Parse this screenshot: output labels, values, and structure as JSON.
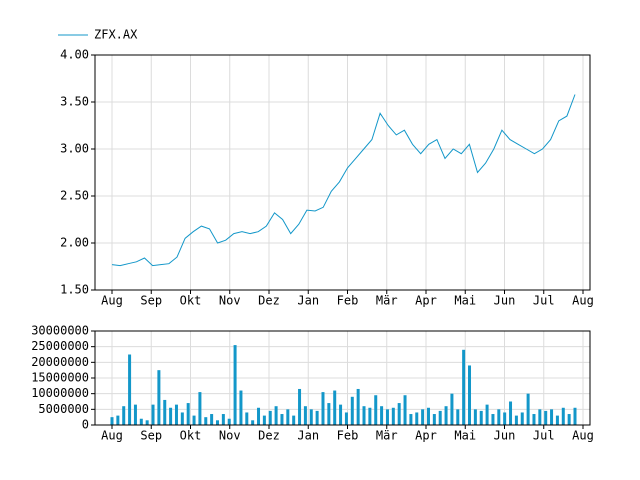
{
  "chart_data": [
    {
      "type": "line",
      "series": [
        {
          "name": "ZFX.AX",
          "color": "#1397c9",
          "values": [
            1.77,
            1.76,
            1.78,
            1.8,
            1.84,
            1.76,
            1.77,
            1.78,
            1.85,
            2.05,
            2.12,
            2.18,
            2.15,
            2.0,
            2.03,
            2.1,
            2.12,
            2.1,
            2.12,
            2.18,
            2.32,
            2.25,
            2.1,
            2.2,
            2.35,
            2.34,
            2.38,
            2.55,
            2.65,
            2.8,
            2.9,
            3.0,
            3.1,
            3.38,
            3.25,
            3.15,
            3.2,
            3.05,
            2.95,
            3.05,
            3.1,
            2.9,
            3.0,
            2.95,
            3.05,
            2.75,
            2.85,
            3.0,
            3.2,
            3.1,
            3.05,
            3.0,
            2.95,
            3.0,
            3.1,
            3.3,
            3.35,
            3.58
          ]
        }
      ],
      "x_labels": [
        "Aug",
        "Sep",
        "Okt",
        "Nov",
        "Dez",
        "Jan",
        "Feb",
        "Mär",
        "Apr",
        "Mai",
        "Jun",
        "Jul",
        "Aug"
      ],
      "ylim": [
        1.5,
        4
      ],
      "yticks": [
        {
          "value": 1.5,
          "label": "1.50"
        },
        {
          "value": 2,
          "label": "2.00"
        },
        {
          "value": 2.5,
          "label": "2.50"
        },
        {
          "value": 3,
          "label": "3.00"
        },
        {
          "value": 3.5,
          "label": "3.50"
        },
        {
          "value": 4,
          "label": "4.00"
        }
      ],
      "grid": true
    },
    {
      "type": "bar",
      "color": "#1397c9",
      "values": [
        2500000,
        3000000,
        6000000,
        22500000,
        6500000,
        2000000,
        1500000,
        6500000,
        17500000,
        8000000,
        5500000,
        6500000,
        4000000,
        7000000,
        3000000,
        10500000,
        2500000,
        3500000,
        1500000,
        3500000,
        2000000,
        25500000,
        11000000,
        4000000,
        1500000,
        5500000,
        3000000,
        4500000,
        6000000,
        3500000,
        5000000,
        3000000,
        11500000,
        6000000,
        5000000,
        4500000,
        10500000,
        7000000,
        11000000,
        6500000,
        4000000,
        9000000,
        11500000,
        6000000,
        5500000,
        9500000,
        6000000,
        5000000,
        5500000,
        7000000,
        9500000,
        3500000,
        4000000,
        5000000,
        5500000,
        3500000,
        4500000,
        6000000,
        10000000,
        5000000,
        24000000,
        19000000,
        5000000,
        4500000,
        6500000,
        3500000,
        5000000,
        4000000,
        7500000,
        3000000,
        4000000,
        10000000,
        3500000,
        5000000,
        4500000,
        5000000,
        3000000,
        5500000,
        3500000,
        5500000
      ],
      "x_labels": [
        "Aug",
        "Sep",
        "Okt",
        "Nov",
        "Dez",
        "Jan",
        "Feb",
        "Mär",
        "Apr",
        "Mai",
        "Jun",
        "Jul",
        "Aug"
      ],
      "ylim": [
        0,
        30000000
      ],
      "yticks": [
        0,
        5000000,
        10000000,
        15000000,
        20000000,
        25000000,
        30000000
      ],
      "grid": true
    }
  ]
}
